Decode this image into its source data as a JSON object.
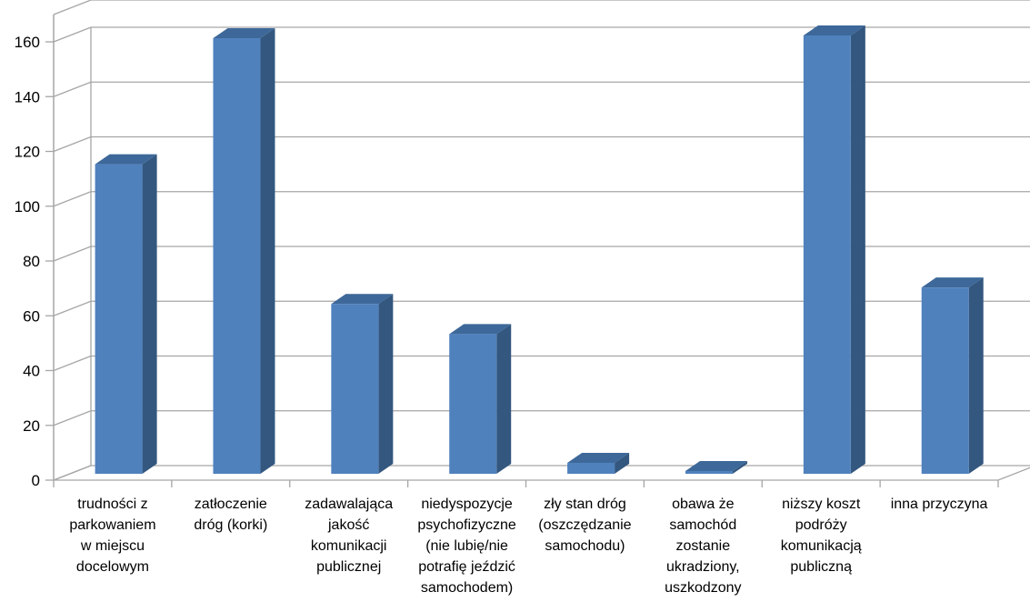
{
  "chart_data": {
    "type": "bar",
    "title": "",
    "xlabel": "",
    "ylabel": "",
    "ylim": [
      0,
      160
    ],
    "y_ticks": [
      0,
      20,
      40,
      60,
      80,
      100,
      120,
      140,
      160
    ],
    "grid": true,
    "categories": [
      "trudności z parkowaniem w miejscu docelowym",
      "zatłoczenie dróg (korki)",
      "zadawalająca jakość komunikacji publicznej",
      "niedyspozycje psychofizyczne (nie lubię/nie potrafię jeździć samochodem)",
      "zły stan dróg (oszczędzanie samochodu)",
      "obawa że samochód zostanie ukradziony, uszkodzony",
      "niższy koszt podróży komunikacją publiczną",
      "inna przyczyna"
    ],
    "category_lines": [
      [
        "trudności z",
        "parkowaniem",
        "w miejscu",
        "docelowym"
      ],
      [
        "zatłoczenie",
        "dróg (korki)"
      ],
      [
        "zadawalająca",
        "jakość",
        "komunikacji",
        "publicznej"
      ],
      [
        "niedyspozycje",
        "psychofizyczne",
        "(nie lubię/nie",
        "potrafię jeździć",
        "samochodem)"
      ],
      [
        "zły stan dróg",
        "(oszczędzanie",
        "samochodu)"
      ],
      [
        "obawa że",
        "samochód",
        "zostanie",
        "ukradziony,",
        "uszkodzony"
      ],
      [
        "niższy koszt",
        "podróży",
        "komunikacją",
        "publiczną"
      ],
      [
        "inna przyczyna"
      ]
    ],
    "values": [
      113,
      159,
      62,
      51,
      4,
      1,
      160,
      68
    ],
    "colors": {
      "front": "#4F81BD",
      "side": "#33577F",
      "top": "#3D6899",
      "grid": "#A6A6A6"
    }
  }
}
